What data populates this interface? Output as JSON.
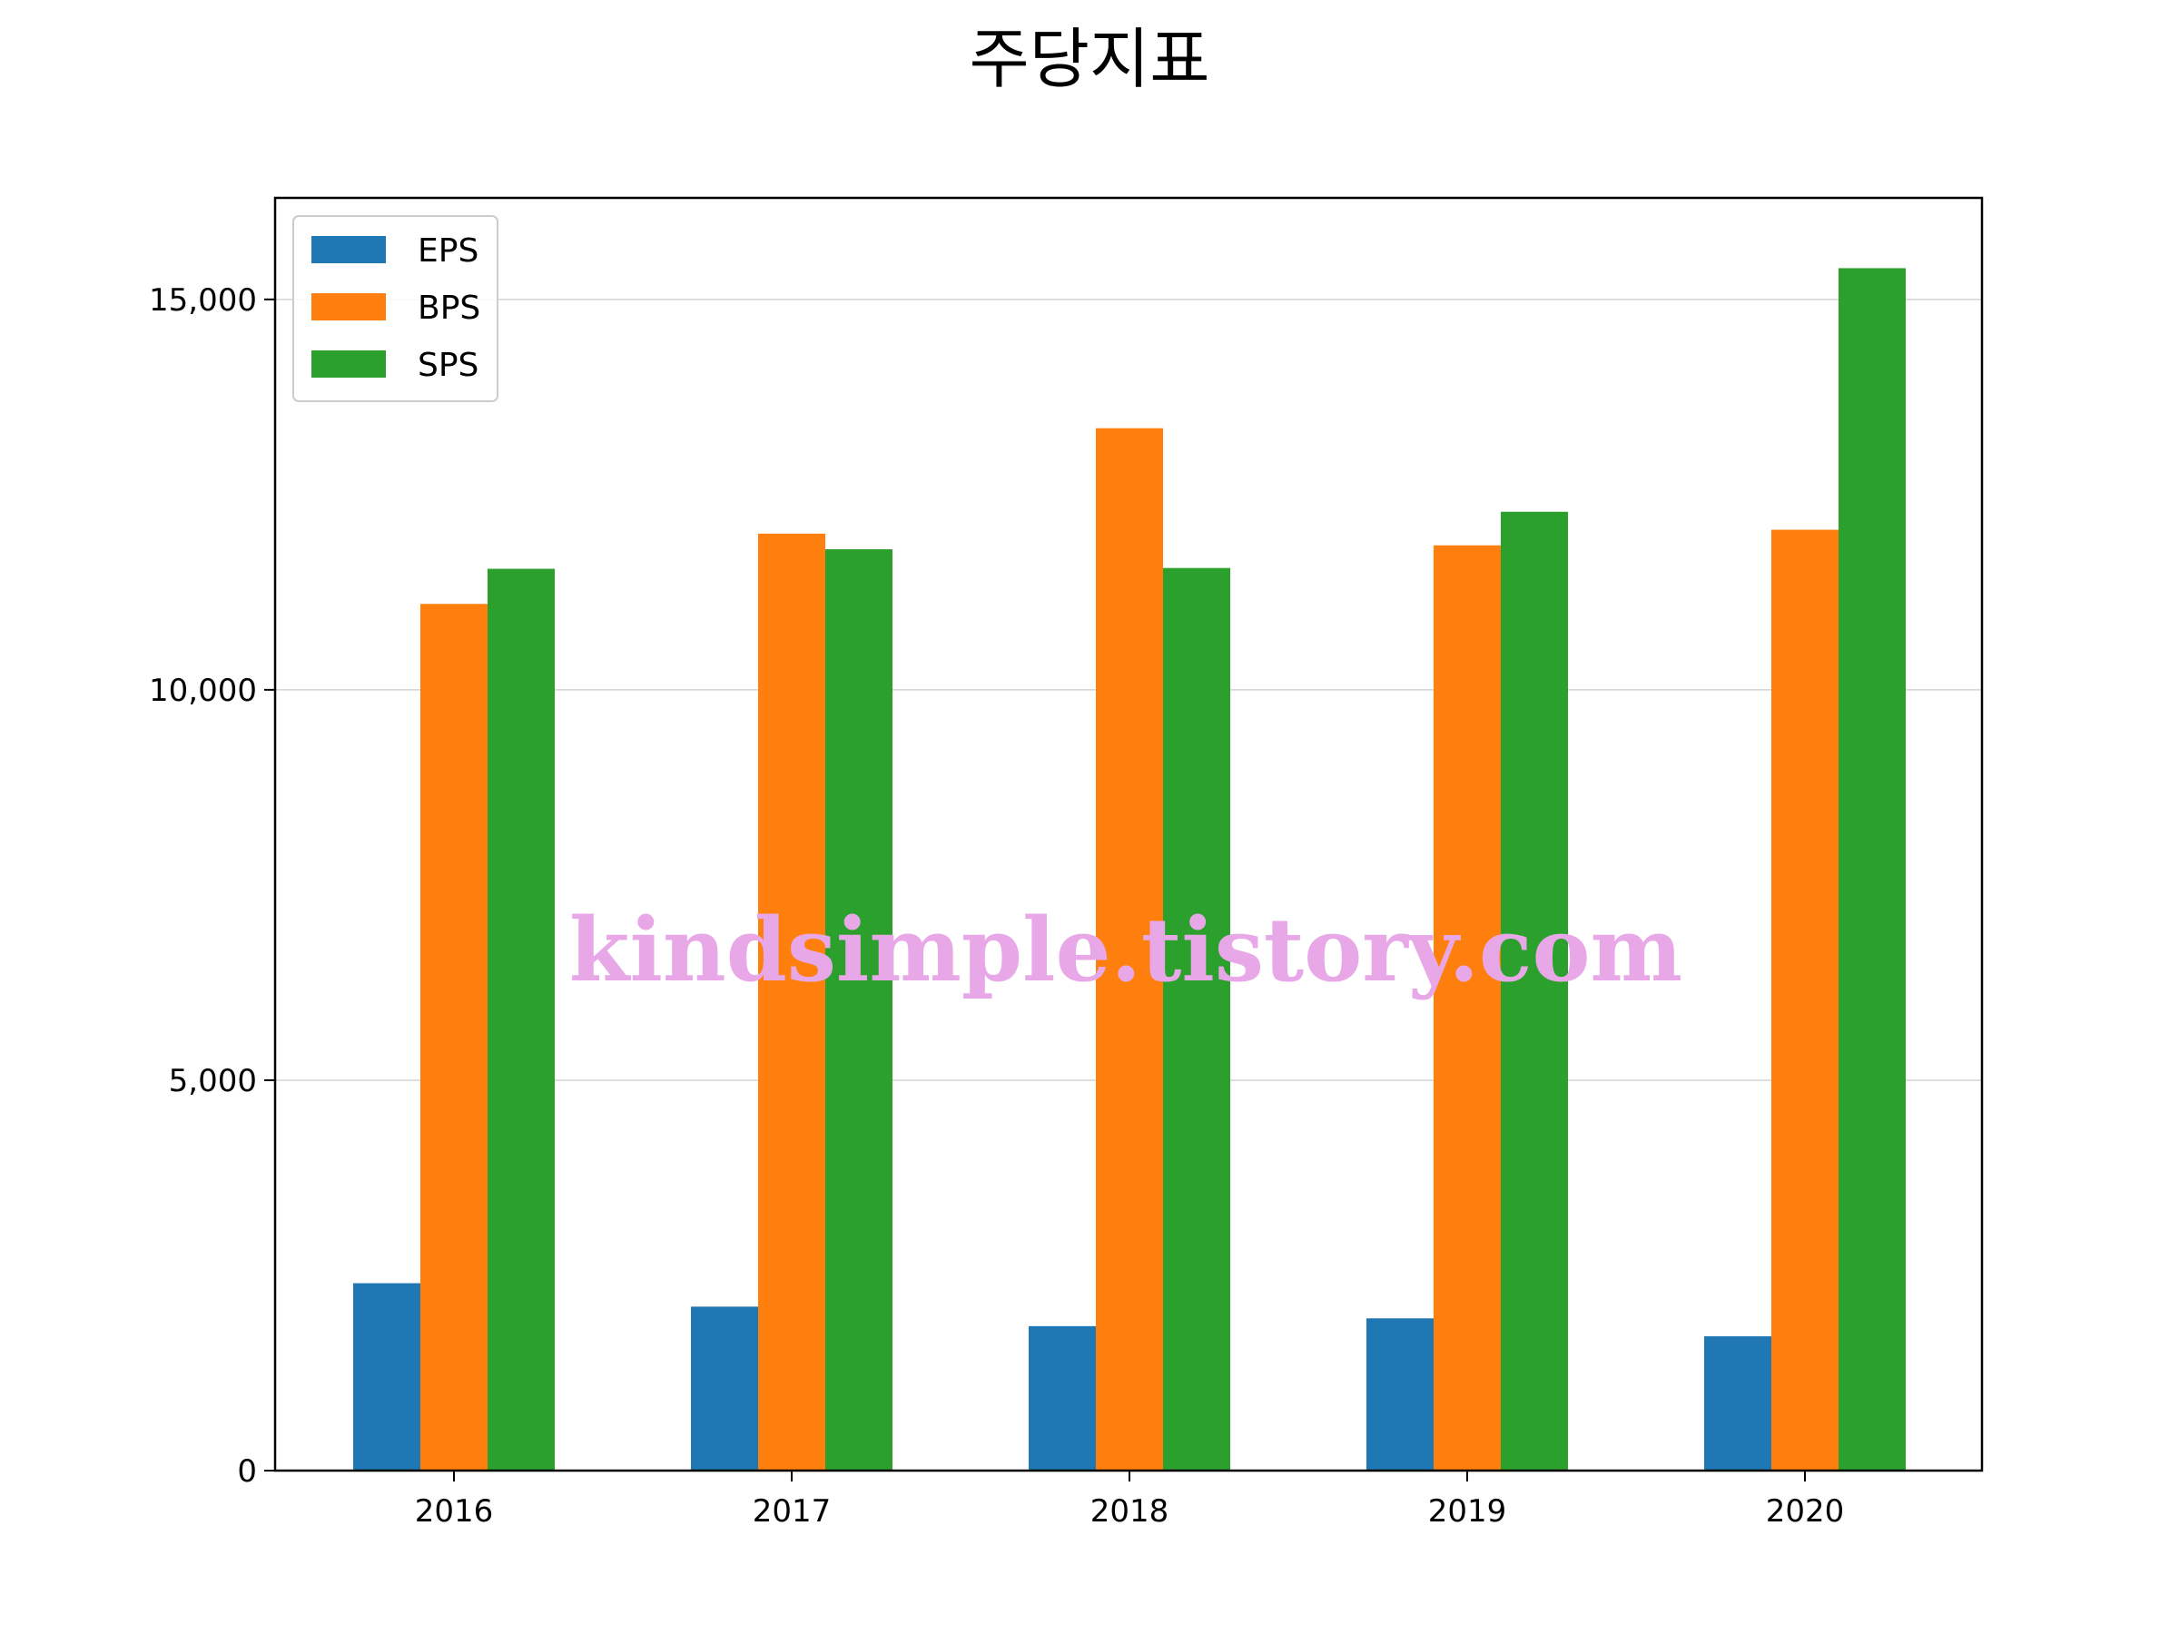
{
  "chart_data": {
    "type": "bar",
    "title": "주당지표",
    "xlabel": "",
    "ylabel": "",
    "categories": [
      "2016",
      "2017",
      "2018",
      "2019",
      "2020"
    ],
    "series": [
      {
        "name": "EPS",
        "color": "#1f77b4",
        "values": [
          2400,
          2100,
          1850,
          1950,
          1720
        ]
      },
      {
        "name": "BPS",
        "color": "#ff7f0e",
        "values": [
          11100,
          12000,
          13350,
          11850,
          12050
        ]
      },
      {
        "name": "SPS",
        "color": "#2ca02c",
        "values": [
          11550,
          11800,
          11560,
          12280,
          15400
        ]
      }
    ],
    "ylim": [
      0,
      16300
    ],
    "yticks": [
      0,
      5000,
      10000,
      15000
    ],
    "ytick_labels": [
      "0",
      "5,000",
      "10,000",
      "15,000"
    ],
    "grid": "y",
    "legend": "top-left"
  },
  "watermark": "kindsimple.tistory.com"
}
